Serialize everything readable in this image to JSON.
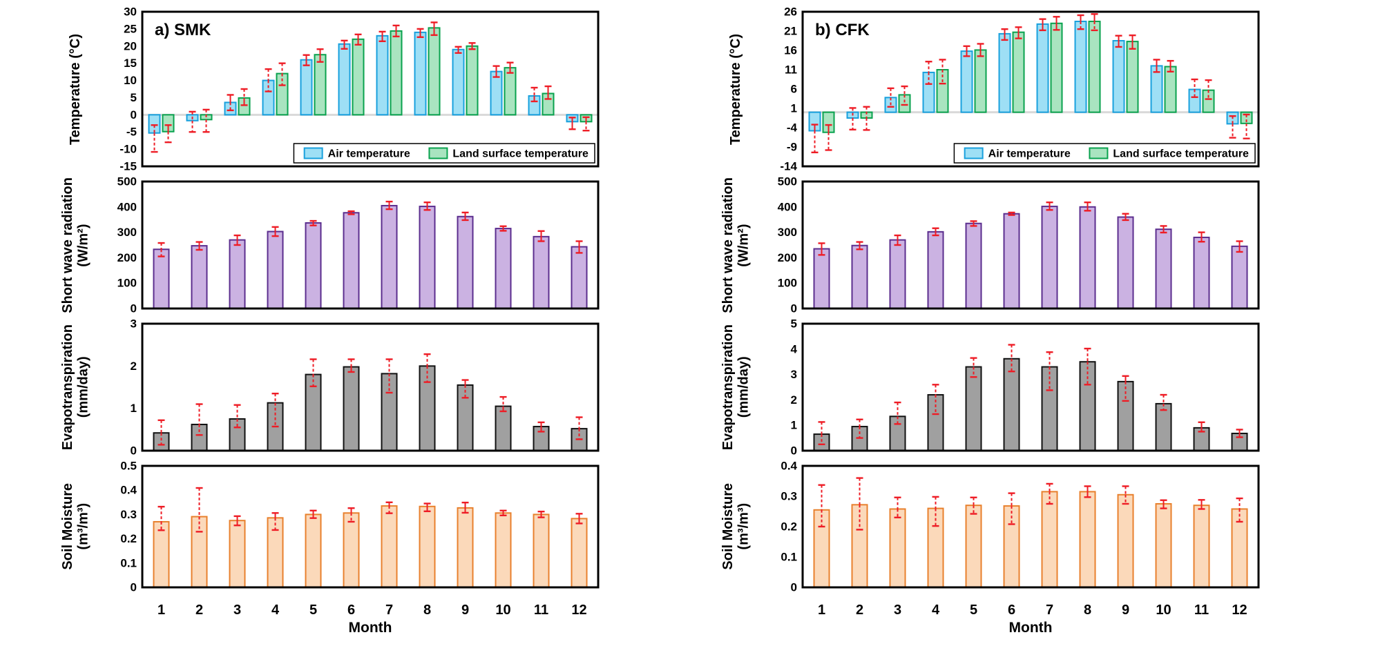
{
  "figure": {
    "months": [
      "1",
      "2",
      "3",
      "4",
      "5",
      "6",
      "7",
      "8",
      "9",
      "10",
      "11",
      "12"
    ],
    "xlabel": "Month",
    "legend_labels": [
      "Air temperature",
      "Land surface temperature"
    ],
    "colors": {
      "air_fill": "#9edff5",
      "air_edge": "#18a0dd",
      "land_fill": "#a9e4c0",
      "land_edge": "#09a24e",
      "radiation_fill": "#cbb2e2",
      "radiation_edge": "#5b2d8e",
      "evap_fill": "#a0a0a0",
      "evap_edge": "#111111",
      "soil_fill": "#fbd9ba",
      "soil_edge": "#e8802d",
      "error_bar": "#ee1c25",
      "zero_line": "#d9d9d9"
    }
  },
  "chart_data": [
    {
      "id": "smk-temperature",
      "panel": "SMK",
      "kind": "temperature",
      "type": "bar",
      "title": "a) SMK",
      "ylabel_lines": [
        "Temperature (°C)"
      ],
      "ylim": [
        -15,
        30
      ],
      "yticks": [
        "30",
        "25",
        "20",
        "15",
        "10",
        "5",
        "0",
        "-5",
        "-10",
        "-15"
      ],
      "legend": true,
      "legend_pos": "bottom-right",
      "grid": false,
      "series": [
        {
          "name": "Air temperature",
          "fill": "#9edff5",
          "edge": "#18a0dd",
          "values": [
            -5.3,
            -1.7,
            3.6,
            10.0,
            16.0,
            20.6,
            23.0,
            24.0,
            19.0,
            12.6,
            5.5,
            -2.0
          ],
          "err_up": [
            2.3,
            2.6,
            2.2,
            3.3,
            1.4,
            1.0,
            1.2,
            1.0,
            0.8,
            1.6,
            2.4,
            1.2
          ],
          "err_dn": [
            5.5,
            3.3,
            2.3,
            3.2,
            1.6,
            1.4,
            1.6,
            1.4,
            1.0,
            1.6,
            1.6,
            2.2
          ]
        },
        {
          "name": "Land surface temperature",
          "fill": "#a9e4c0",
          "edge": "#09a24e",
          "values": [
            -4.9,
            -1.4,
            4.9,
            12.0,
            17.5,
            22.0,
            24.4,
            25.3,
            20.0,
            13.7,
            6.2,
            -2.0
          ],
          "err_up": [
            1.9,
            2.9,
            2.6,
            3.0,
            1.6,
            1.4,
            1.6,
            1.6,
            0.9,
            1.5,
            2.1,
            1.3
          ],
          "err_dn": [
            3.1,
            3.6,
            2.1,
            3.4,
            2.1,
            1.6,
            1.6,
            2.1,
            0.9,
            1.5,
            1.6,
            2.6
          ]
        }
      ]
    },
    {
      "id": "smk-radiation",
      "panel": "SMK",
      "kind": "radiation",
      "type": "bar",
      "ylabel_lines": [
        "Short wave radiation",
        "(W/m²)"
      ],
      "ylim": [
        0,
        500
      ],
      "yticks": [
        "500",
        "400",
        "300",
        "200",
        "100",
        "0"
      ],
      "series": [
        {
          "name": "Short wave radiation",
          "fill": "#cbb2e2",
          "edge": "#5b2d8e",
          "values": [
            233,
            247,
            270,
            303,
            337,
            377,
            405,
            402,
            362,
            315,
            283,
            243
          ],
          "err_up": [
            25,
            15,
            18,
            18,
            8,
            6,
            16,
            16,
            16,
            9,
            22,
            22
          ],
          "err_dn": [
            28,
            16,
            20,
            18,
            10,
            6,
            14,
            14,
            14,
            9,
            18,
            24
          ]
        }
      ]
    },
    {
      "id": "smk-evapotranspiration",
      "panel": "SMK",
      "kind": "evapotranspiration",
      "type": "bar",
      "ylabel_lines": [
        "Evapotranspiration",
        "(mm/day)"
      ],
      "ylim": [
        0,
        3
      ],
      "yticks": [
        "3",
        "2",
        "1",
        "0"
      ],
      "series": [
        {
          "name": "Evapotranspiration",
          "fill": "#a0a0a0",
          "edge": "#111111",
          "values": [
            0.42,
            0.62,
            0.75,
            1.13,
            1.8,
            1.98,
            1.82,
            2.0,
            1.55,
            1.05,
            0.57,
            0.52
          ],
          "err_up": [
            0.3,
            0.48,
            0.33,
            0.22,
            0.36,
            0.18,
            0.34,
            0.28,
            0.12,
            0.22,
            0.1,
            0.27
          ],
          "err_dn": [
            0.28,
            0.25,
            0.2,
            0.56,
            0.28,
            0.12,
            0.45,
            0.38,
            0.3,
            0.12,
            0.12,
            0.25
          ]
        }
      ]
    },
    {
      "id": "smk-soil-moisture",
      "panel": "SMK",
      "kind": "soil",
      "type": "bar",
      "ylabel_lines": [
        "Soil Moisture",
        "(m³/m³)"
      ],
      "ylim": [
        0,
        0.5
      ],
      "yticks": [
        "0.5",
        "0.4",
        "0.3",
        "0.2",
        "0.1",
        "0"
      ],
      "series": [
        {
          "name": "Soil Moisture",
          "fill": "#fbd9ba",
          "edge": "#e8802d",
          "values": [
            0.27,
            0.291,
            0.275,
            0.286,
            0.3,
            0.306,
            0.335,
            0.333,
            0.327,
            0.306,
            0.3,
            0.283
          ],
          "err_up": [
            0.062,
            0.118,
            0.018,
            0.02,
            0.016,
            0.02,
            0.015,
            0.012,
            0.022,
            0.01,
            0.012,
            0.02
          ],
          "err_dn": [
            0.035,
            0.062,
            0.02,
            0.05,
            0.015,
            0.036,
            0.03,
            0.02,
            0.02,
            0.01,
            0.012,
            0.02
          ]
        }
      ]
    },
    {
      "id": "cfk-temperature",
      "panel": "CFK",
      "kind": "temperature",
      "type": "bar",
      "title": "b) CFK",
      "ylabel_lines": [
        "Temperature (°C)"
      ],
      "ylim": [
        -14,
        26
      ],
      "yticks": [
        "26",
        "21",
        "16",
        "11",
        "6",
        "1",
        "-4",
        "-9",
        "-14"
      ],
      "legend": true,
      "legend_pos": "bottom-right",
      "grid": false,
      "series": [
        {
          "name": "Air temperature",
          "fill": "#9edff5",
          "edge": "#18a0dd",
          "values": [
            -4.8,
            -1.5,
            3.8,
            10.3,
            15.8,
            20.3,
            22.8,
            23.5,
            18.5,
            12.0,
            5.9,
            -3.0
          ],
          "err_up": [
            1.6,
            2.6,
            2.4,
            2.8,
            1.3,
            1.2,
            1.3,
            1.6,
            1.3,
            1.6,
            2.6,
            2.0
          ],
          "err_dn": [
            5.6,
            3.0,
            2.4,
            3.0,
            1.3,
            1.6,
            1.6,
            2.0,
            1.6,
            1.6,
            2.0,
            3.6
          ]
        },
        {
          "name": "Land surface temperature",
          "fill": "#a9e4c0",
          "edge": "#09a24e",
          "values": [
            -5.2,
            -1.5,
            4.5,
            11.0,
            16.1,
            20.7,
            23.0,
            23.5,
            18.3,
            11.8,
            5.7,
            -2.9
          ],
          "err_up": [
            1.9,
            2.9,
            2.2,
            2.6,
            1.6,
            1.3,
            1.7,
            1.9,
            1.6,
            1.5,
            2.6,
            2.3
          ],
          "err_dn": [
            4.6,
            3.1,
            2.6,
            3.6,
            1.6,
            1.6,
            1.7,
            2.3,
            1.9,
            1.3,
            2.3,
            3.9
          ]
        }
      ]
    },
    {
      "id": "cfk-radiation",
      "panel": "CFK",
      "kind": "radiation",
      "type": "bar",
      "ylabel_lines": [
        "Short wave radiation",
        "(W/m²)"
      ],
      "ylim": [
        0,
        500
      ],
      "yticks": [
        "500",
        "400",
        "300",
        "200",
        "100",
        "0"
      ],
      "series": [
        {
          "name": "Short wave radiation",
          "fill": "#cbb2e2",
          "edge": "#5b2d8e",
          "values": [
            235,
            248,
            270,
            302,
            335,
            373,
            402,
            400,
            360,
            312,
            280,
            245
          ],
          "err_up": [
            22,
            14,
            18,
            14,
            9,
            5,
            16,
            18,
            13,
            13,
            20,
            20
          ],
          "err_dn": [
            24,
            15,
            20,
            14,
            10,
            5,
            14,
            15,
            12,
            13,
            17,
            22
          ]
        }
      ]
    },
    {
      "id": "cfk-evapotranspiration",
      "panel": "CFK",
      "kind": "evapotranspiration",
      "type": "bar",
      "ylabel_lines": [
        "Evapotranspiration",
        "(mm/day)"
      ],
      "ylim": [
        0,
        5
      ],
      "yticks": [
        "5",
        "4",
        "3",
        "2",
        "1",
        "0"
      ],
      "series": [
        {
          "name": "Evapotranspiration",
          "fill": "#a0a0a0",
          "edge": "#111111",
          "values": [
            0.65,
            0.95,
            1.35,
            2.2,
            3.3,
            3.62,
            3.3,
            3.5,
            2.72,
            1.85,
            0.9,
            0.68
          ],
          "err_up": [
            0.48,
            0.28,
            0.55,
            0.4,
            0.35,
            0.55,
            0.58,
            0.52,
            0.22,
            0.35,
            0.22,
            0.15
          ],
          "err_dn": [
            0.4,
            0.45,
            0.3,
            0.76,
            0.4,
            0.5,
            0.92,
            0.9,
            0.76,
            0.25,
            0.15,
            0.15
          ]
        }
      ]
    },
    {
      "id": "cfk-soil-moisture",
      "panel": "CFK",
      "kind": "soil",
      "type": "bar",
      "ylabel_lines": [
        "Soil Moisture",
        "(m³/m³)"
      ],
      "ylim": [
        0,
        0.4
      ],
      "yticks": [
        "0.4",
        "0.3",
        "0.2",
        "0.1",
        "0"
      ],
      "series": [
        {
          "name": "Soil Moisture",
          "fill": "#fbd9ba",
          "edge": "#e8802d",
          "values": [
            0.255,
            0.272,
            0.258,
            0.26,
            0.27,
            0.268,
            0.315,
            0.315,
            0.305,
            0.275,
            0.27,
            0.258
          ],
          "err_up": [
            0.082,
            0.088,
            0.038,
            0.038,
            0.026,
            0.042,
            0.026,
            0.018,
            0.028,
            0.012,
            0.018,
            0.035
          ],
          "err_dn": [
            0.055,
            0.082,
            0.028,
            0.058,
            0.028,
            0.06,
            0.04,
            0.018,
            0.03,
            0.015,
            0.012,
            0.042
          ]
        }
      ]
    }
  ]
}
